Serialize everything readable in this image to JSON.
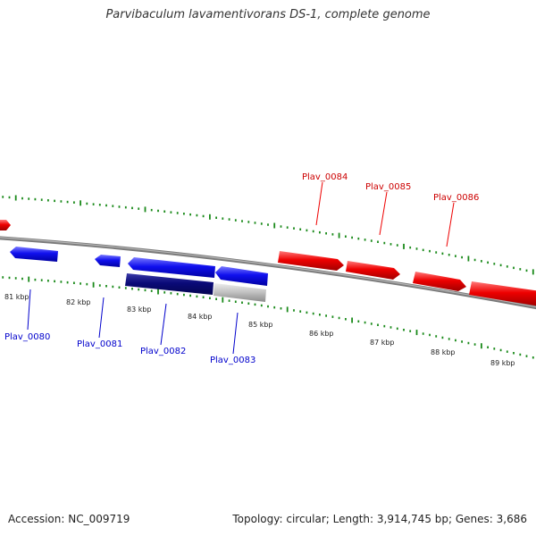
{
  "title": "Parvibaculum lavamentivorans DS-1, complete genome",
  "footer": {
    "accession": "Accession: NC_009719",
    "summary": "Topology: circular; Length: 3,914,745 bp; Genes: 3,686"
  },
  "colors": {
    "forward_gene": "#ee0000",
    "reverse_gene": "#1010ee",
    "reverse_gene_dark": "#0a0a78",
    "gray_gene": "#c4c4c4",
    "ticks": "#1a8a1a",
    "backbone": "#8a8a8a",
    "forward_label": "#cc0000",
    "reverse_label": "#0000cc"
  },
  "scale": {
    "labels": [
      "81 kbp",
      "82 kbp",
      "83 kbp",
      "84 kbp",
      "85 kbp",
      "86 kbp",
      "87 kbp",
      "88 kbp",
      "89 kbp"
    ]
  },
  "genes": [
    {
      "label": "Plav_0084",
      "strand": "forward"
    },
    {
      "label": "Plav_0085",
      "strand": "forward"
    },
    {
      "label": "Plav_0086",
      "strand": "forward"
    },
    {
      "label": "Plav_0080",
      "strand": "reverse"
    },
    {
      "label": "Plav_0081",
      "strand": "reverse"
    },
    {
      "label": "Plav_0082",
      "strand": "reverse"
    },
    {
      "label": "Plav_0083",
      "strand": "reverse"
    }
  ]
}
